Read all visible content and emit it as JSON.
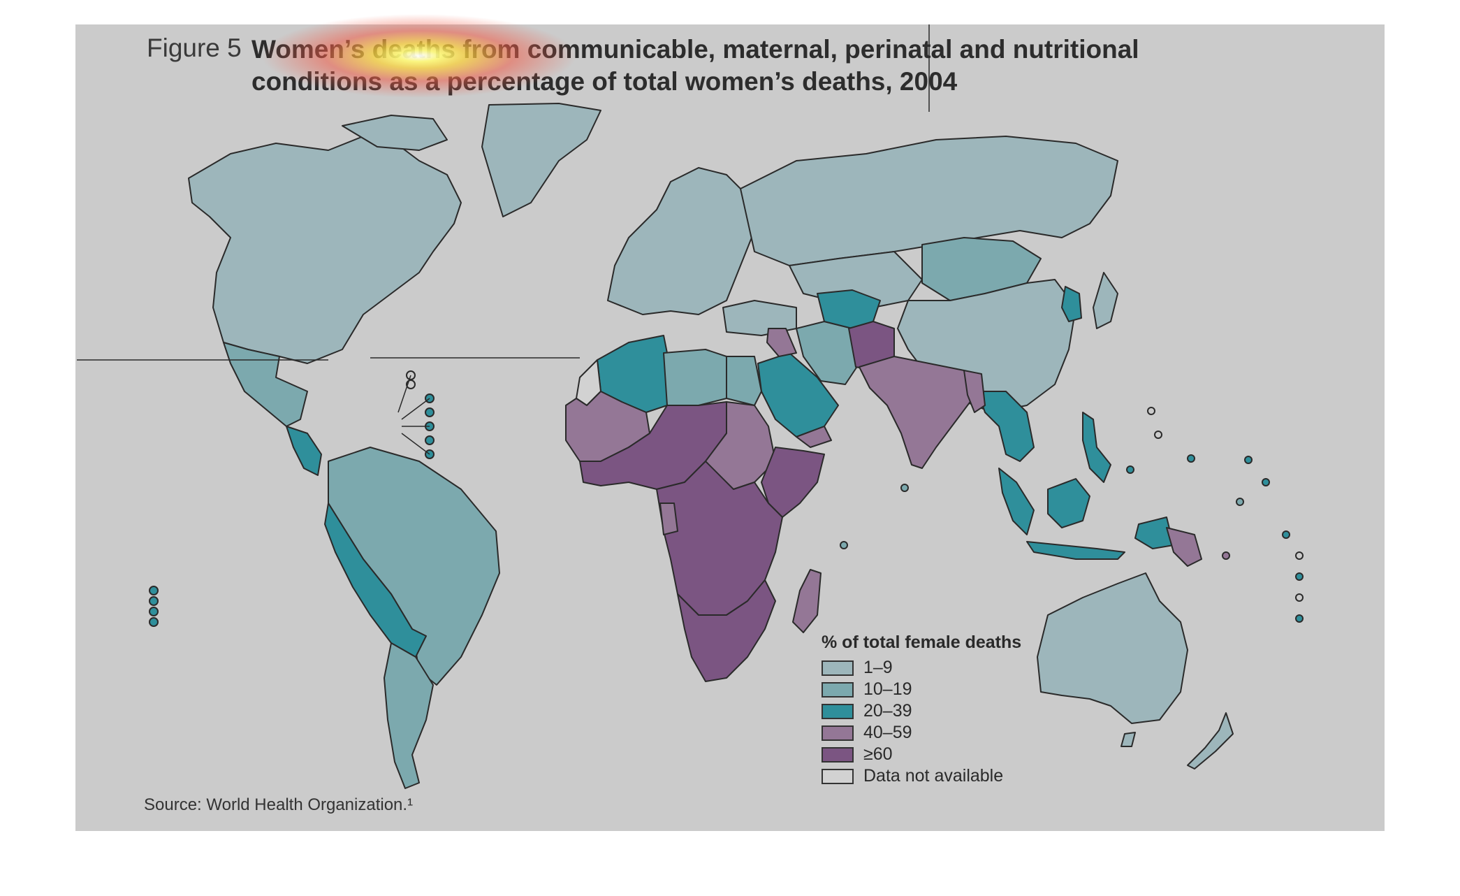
{
  "figure": {
    "label": "Figure 5",
    "title": "Women’s deaths from communicable, maternal, perinatal and nutritional conditions as a percentage of total women’s deaths, 2004",
    "source": "Source: World Health Organization.¹"
  },
  "legend": {
    "title": "% of total female deaths",
    "items": [
      {
        "label": "1–9",
        "color": "#9db6bb"
      },
      {
        "label": "10–19",
        "color": "#7ca9ae"
      },
      {
        "label": "20–39",
        "color": "#2f8f9b"
      },
      {
        "label": "40–59",
        "color": "#947796"
      },
      {
        "label": "≥60",
        "color": "#7b5582"
      },
      {
        "label": "Data not available",
        "color": "#d2d2d2"
      }
    ]
  },
  "colors": {
    "background": "#cbcbcb",
    "outline": "#2a2a2a"
  }
}
